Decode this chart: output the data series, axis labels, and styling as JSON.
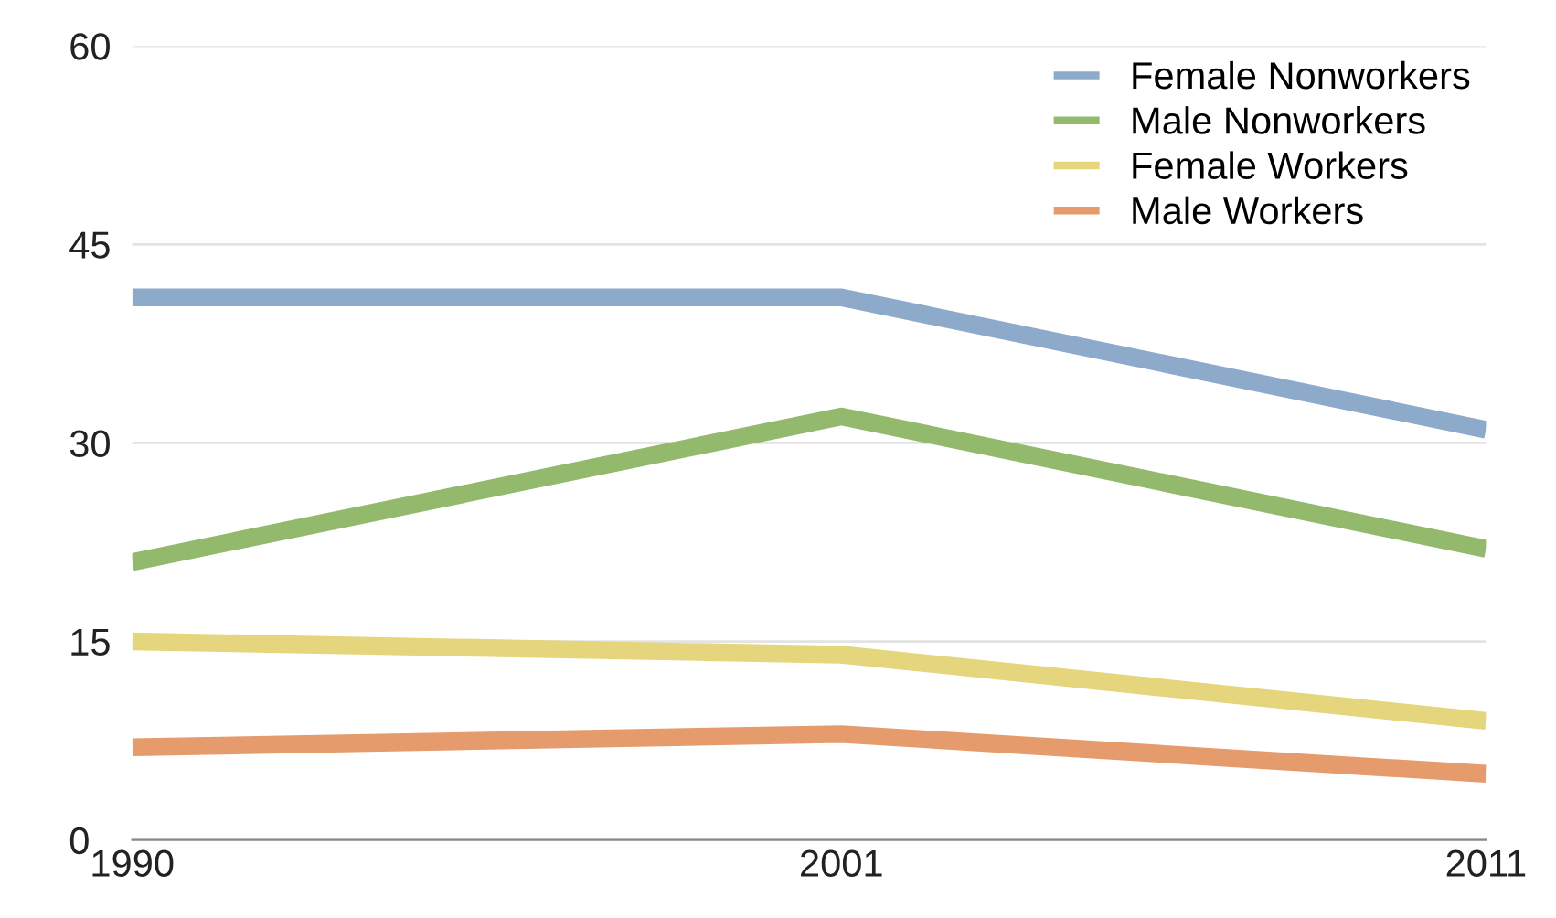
{
  "chart_data": {
    "type": "line",
    "x": [
      1990,
      2001,
      2011
    ],
    "series": [
      {
        "name": "Female Nonworkers",
        "color": "#8eaacb",
        "values": [
          41,
          41,
          31
        ]
      },
      {
        "name": "Male Nonworkers",
        "color": "#93b96c",
        "values": [
          21,
          32,
          22
        ]
      },
      {
        "name": "Female Workers",
        "color": "#e5d57c",
        "values": [
          15,
          14,
          9
        ]
      },
      {
        "name": "Male Workers",
        "color": "#e59b6c",
        "values": [
          7,
          8,
          5
        ]
      }
    ],
    "xlim": [
      1990,
      2011
    ],
    "xticks": [
      1990,
      2001,
      2011
    ],
    "ylim": [
      0,
      60
    ],
    "yticks": [
      0,
      15,
      30,
      45,
      60
    ],
    "grid": "y",
    "legend": "top right",
    "marker": "none",
    "line_style": "solid"
  }
}
